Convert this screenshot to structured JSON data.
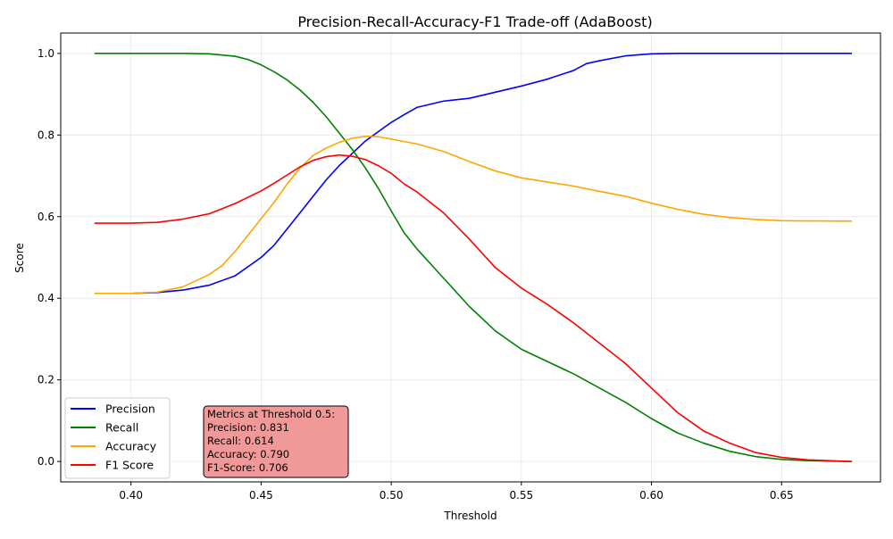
{
  "chart_data": {
    "type": "line",
    "title": "Precision-Recall-Accuracy-F1 Trade-off (AdaBoost)",
    "xlabel": "Threshold",
    "ylabel": "Score",
    "xlim": [
      0.373,
      0.688
    ],
    "ylim": [
      -0.05,
      1.05
    ],
    "xticks": [
      0.4,
      0.45,
      0.5,
      0.55,
      0.6,
      0.65
    ],
    "xtick_labels": [
      "0.40",
      "0.45",
      "0.50",
      "0.55",
      "0.60",
      "0.65"
    ],
    "yticks": [
      0.0,
      0.2,
      0.4,
      0.6,
      0.8,
      1.0
    ],
    "ytick_labels": [
      "0.0",
      "0.2",
      "0.4",
      "0.6",
      "0.8",
      "1.0"
    ],
    "grid": true,
    "legend_position": "lower-left",
    "series": [
      {
        "name": "Precision",
        "color": "#0000ff",
        "points": [
          [
            0.386,
            0.412
          ],
          [
            0.4,
            0.412
          ],
          [
            0.41,
            0.414
          ],
          [
            0.42,
            0.42
          ],
          [
            0.43,
            0.432
          ],
          [
            0.44,
            0.455
          ],
          [
            0.45,
            0.5
          ],
          [
            0.455,
            0.53
          ],
          [
            0.46,
            0.57
          ],
          [
            0.465,
            0.61
          ],
          [
            0.47,
            0.65
          ],
          [
            0.475,
            0.69
          ],
          [
            0.48,
            0.725
          ],
          [
            0.485,
            0.755
          ],
          [
            0.49,
            0.785
          ],
          [
            0.495,
            0.808
          ],
          [
            0.5,
            0.831
          ],
          [
            0.505,
            0.85
          ],
          [
            0.51,
            0.868
          ],
          [
            0.52,
            0.883
          ],
          [
            0.53,
            0.89
          ],
          [
            0.54,
            0.905
          ],
          [
            0.55,
            0.92
          ],
          [
            0.56,
            0.937
          ],
          [
            0.57,
            0.958
          ],
          [
            0.575,
            0.975
          ],
          [
            0.58,
            0.982
          ],
          [
            0.59,
            0.994
          ],
          [
            0.6,
            0.999
          ],
          [
            0.61,
            1.0
          ],
          [
            0.62,
            1.0
          ],
          [
            0.65,
            1.0
          ],
          [
            0.677,
            1.0
          ]
        ]
      },
      {
        "name": "Recall",
        "color": "#008000",
        "points": [
          [
            0.386,
            1.0
          ],
          [
            0.4,
            1.0
          ],
          [
            0.42,
            1.0
          ],
          [
            0.43,
            0.999
          ],
          [
            0.44,
            0.993
          ],
          [
            0.445,
            0.985
          ],
          [
            0.45,
            0.972
          ],
          [
            0.455,
            0.955
          ],
          [
            0.46,
            0.935
          ],
          [
            0.465,
            0.91
          ],
          [
            0.47,
            0.88
          ],
          [
            0.475,
            0.845
          ],
          [
            0.48,
            0.805
          ],
          [
            0.485,
            0.765
          ],
          [
            0.49,
            0.72
          ],
          [
            0.495,
            0.67
          ],
          [
            0.5,
            0.614
          ],
          [
            0.505,
            0.56
          ],
          [
            0.51,
            0.52
          ],
          [
            0.52,
            0.45
          ],
          [
            0.53,
            0.38
          ],
          [
            0.54,
            0.32
          ],
          [
            0.55,
            0.275
          ],
          [
            0.56,
            0.245
          ],
          [
            0.57,
            0.215
          ],
          [
            0.58,
            0.18
          ],
          [
            0.59,
            0.145
          ],
          [
            0.6,
            0.105
          ],
          [
            0.61,
            0.07
          ],
          [
            0.62,
            0.045
          ],
          [
            0.63,
            0.025
          ],
          [
            0.64,
            0.012
          ],
          [
            0.65,
            0.005
          ],
          [
            0.66,
            0.002
          ],
          [
            0.677,
            0.0
          ]
        ]
      },
      {
        "name": "Accuracy",
        "color": "#ffa500",
        "points": [
          [
            0.386,
            0.412
          ],
          [
            0.4,
            0.412
          ],
          [
            0.41,
            0.415
          ],
          [
            0.42,
            0.428
          ],
          [
            0.43,
            0.458
          ],
          [
            0.435,
            0.48
          ],
          [
            0.44,
            0.515
          ],
          [
            0.445,
            0.555
          ],
          [
            0.45,
            0.595
          ],
          [
            0.455,
            0.635
          ],
          [
            0.46,
            0.68
          ],
          [
            0.465,
            0.72
          ],
          [
            0.47,
            0.75
          ],
          [
            0.475,
            0.768
          ],
          [
            0.48,
            0.782
          ],
          [
            0.485,
            0.792
          ],
          [
            0.49,
            0.797
          ],
          [
            0.495,
            0.796
          ],
          [
            0.5,
            0.79
          ],
          [
            0.51,
            0.778
          ],
          [
            0.52,
            0.76
          ],
          [
            0.53,
            0.735
          ],
          [
            0.54,
            0.712
          ],
          [
            0.55,
            0.695
          ],
          [
            0.56,
            0.685
          ],
          [
            0.57,
            0.675
          ],
          [
            0.58,
            0.662
          ],
          [
            0.59,
            0.65
          ],
          [
            0.6,
            0.633
          ],
          [
            0.61,
            0.618
          ],
          [
            0.62,
            0.606
          ],
          [
            0.63,
            0.598
          ],
          [
            0.64,
            0.593
          ],
          [
            0.65,
            0.59
          ],
          [
            0.677,
            0.589
          ]
        ]
      },
      {
        "name": "F1 Score",
        "color": "#ff0000",
        "points": [
          [
            0.386,
            0.584
          ],
          [
            0.4,
            0.584
          ],
          [
            0.41,
            0.586
          ],
          [
            0.42,
            0.594
          ],
          [
            0.43,
            0.607
          ],
          [
            0.44,
            0.632
          ],
          [
            0.45,
            0.663
          ],
          [
            0.455,
            0.682
          ],
          [
            0.46,
            0.702
          ],
          [
            0.465,
            0.722
          ],
          [
            0.47,
            0.738
          ],
          [
            0.475,
            0.747
          ],
          [
            0.48,
            0.751
          ],
          [
            0.485,
            0.748
          ],
          [
            0.49,
            0.74
          ],
          [
            0.495,
            0.725
          ],
          [
            0.5,
            0.706
          ],
          [
            0.505,
            0.68
          ],
          [
            0.51,
            0.66
          ],
          [
            0.52,
            0.61
          ],
          [
            0.53,
            0.545
          ],
          [
            0.54,
            0.475
          ],
          [
            0.55,
            0.425
          ],
          [
            0.56,
            0.385
          ],
          [
            0.57,
            0.34
          ],
          [
            0.58,
            0.29
          ],
          [
            0.59,
            0.24
          ],
          [
            0.6,
            0.18
          ],
          [
            0.61,
            0.12
          ],
          [
            0.62,
            0.075
          ],
          [
            0.63,
            0.045
          ],
          [
            0.64,
            0.022
          ],
          [
            0.65,
            0.01
          ],
          [
            0.66,
            0.004
          ],
          [
            0.677,
            0.0
          ]
        ]
      }
    ],
    "annotation": {
      "lines": [
        "Metrics at Threshold 0.5:",
        "Precision: 0.831",
        "Recall: 0.614",
        "Accuracy: 0.790",
        "F1-Score: 0.706"
      ],
      "background": "#f19999"
    }
  }
}
